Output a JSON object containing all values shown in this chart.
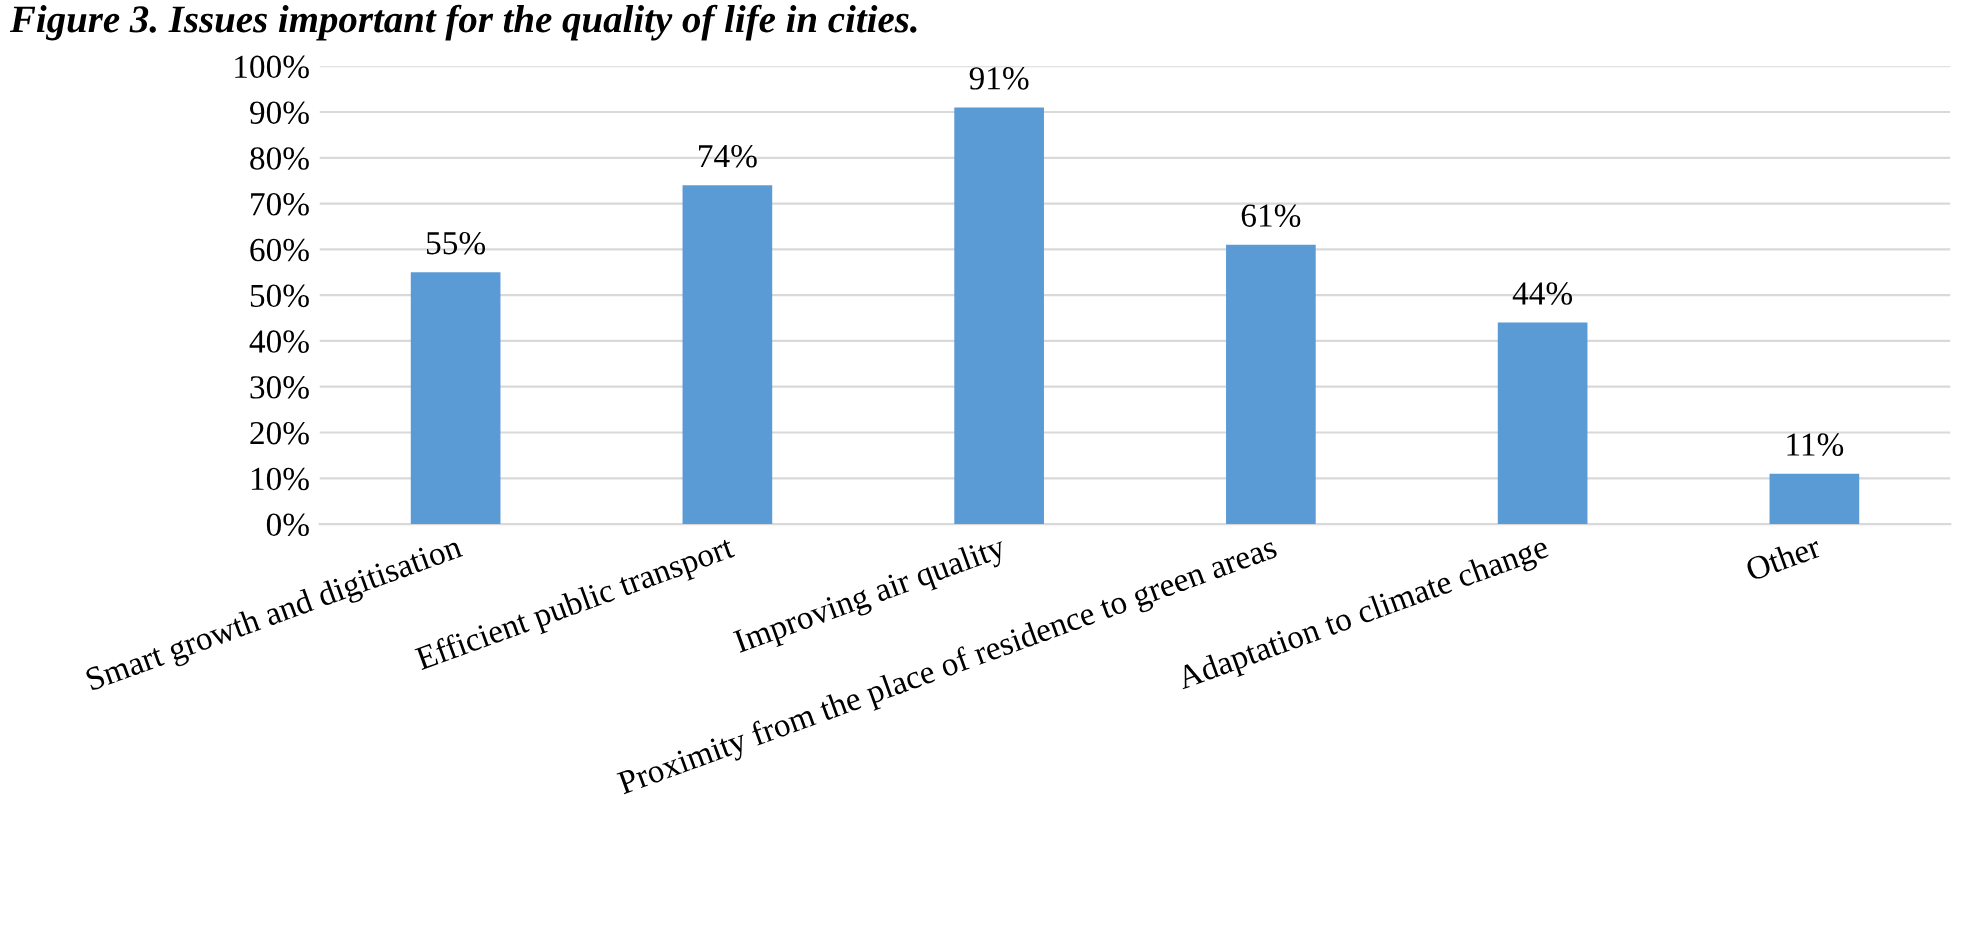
{
  "chart_data": {
    "type": "bar",
    "title": "Figure 3. Issues important for the quality of life in cities.",
    "categories": [
      "Smart growth and digitisation",
      "Efficient public transport",
      "Improving air quality",
      "Proximity from the place of residence to green areas",
      "Adaptation to climate change",
      "Other"
    ],
    "values": [
      55,
      74,
      91,
      61,
      44,
      11
    ],
    "value_labels": [
      "55%",
      "74%",
      "91%",
      "61%",
      "44%",
      "11%"
    ],
    "color": "#5b9bd5",
    "ylim": [
      0,
      100
    ],
    "yticks": [
      {
        "value": 0,
        "label": "0%"
      },
      {
        "value": 10,
        "label": "10%"
      },
      {
        "value": 20,
        "label": "20%"
      },
      {
        "value": 30,
        "label": "30%"
      },
      {
        "value": 40,
        "label": "40%"
      },
      {
        "value": 50,
        "label": "50%"
      },
      {
        "value": 60,
        "label": "60%"
      },
      {
        "value": 70,
        "label": "70%"
      },
      {
        "value": 80,
        "label": "80%"
      },
      {
        "value": 90,
        "label": "90%"
      },
      {
        "value": 100,
        "label": "100%"
      }
    ],
    "grid": "y",
    "legend": false
  }
}
